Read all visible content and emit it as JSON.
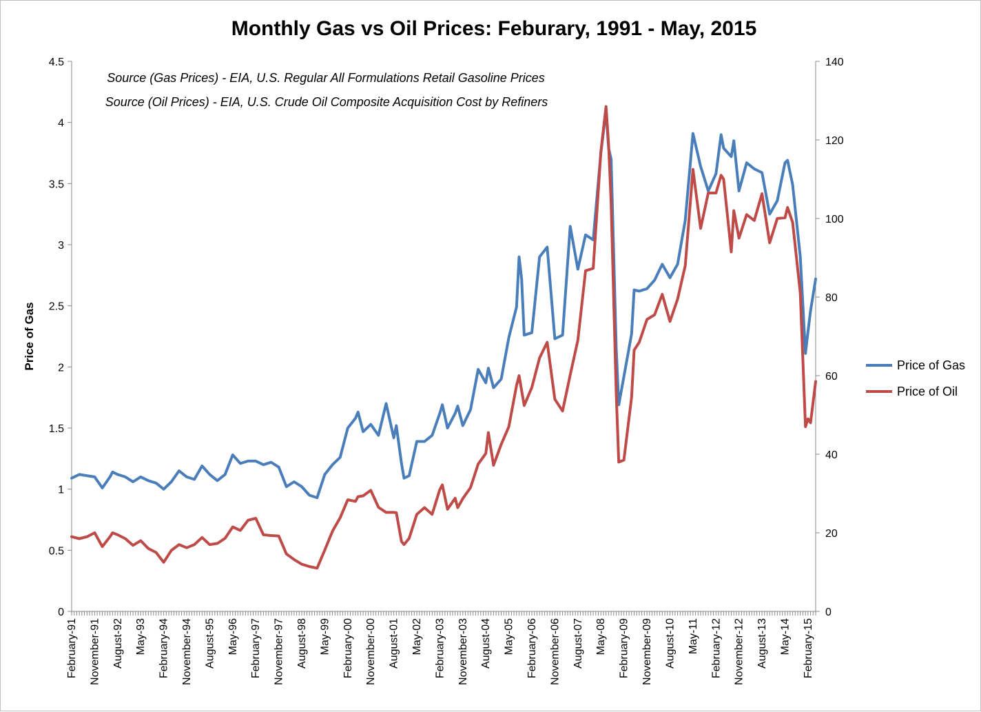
{
  "chart_data": {
    "type": "line",
    "title": "Monthly Gas vs Oil Prices: Feburary, 1991 - May, 2015",
    "ylabel": "Price of Gas",
    "y2label": "",
    "ylim": [
      0,
      4.5
    ],
    "y2lim": [
      0,
      140
    ],
    "y_ticks": [
      "0",
      "0.5",
      "1",
      "1.5",
      "2",
      "2.5",
      "3",
      "3.5",
      "4",
      "4.5"
    ],
    "y2_ticks": [
      "0",
      "20",
      "40",
      "60",
      "80",
      "100",
      "120",
      "140"
    ],
    "x_tick_labels": [
      "February-91",
      "November-91",
      "August-92",
      "May-93",
      "February-94",
      "November-94",
      "August-95",
      "May-96",
      "February-97",
      "November-97",
      "August-98",
      "May-99",
      "February-00",
      "November-00",
      "August-01",
      "May-02",
      "February-03",
      "November-03",
      "August-04",
      "May-05",
      "February-06",
      "November-06",
      "August-07",
      "May-08",
      "February-09",
      "November-09",
      "August-10",
      "May-11",
      "February-12",
      "November-12",
      "August-13",
      "May-14",
      "February-15"
    ],
    "annotations": [
      "Source (Gas Prices) - EIA, U.S. Regular All Formulations Retail Gasoline Prices",
      "Source (Oil Prices) - EIA, U.S. Crude Oil Composite Acquisition Cost by Refiners"
    ],
    "legend_position": "right",
    "grid": false,
    "x_start": "February-91",
    "x_end": "May-15",
    "series": [
      {
        "name": "Price of Gas",
        "axis": "left",
        "color": "#4a7ebb",
        "points": [
          [
            "February-91",
            1.09
          ],
          [
            "May-91",
            1.12
          ],
          [
            "August-91",
            1.11
          ],
          [
            "November-91",
            1.1
          ],
          [
            "February-92",
            1.01
          ],
          [
            "May-92",
            1.1
          ],
          [
            "June-92",
            1.14
          ],
          [
            "August-92",
            1.12
          ],
          [
            "November-92",
            1.1
          ],
          [
            "February-93",
            1.06
          ],
          [
            "May-93",
            1.1
          ],
          [
            "August-93",
            1.07
          ],
          [
            "November-93",
            1.05
          ],
          [
            "February-94",
            1.0
          ],
          [
            "May-94",
            1.06
          ],
          [
            "August-94",
            1.15
          ],
          [
            "November-94",
            1.1
          ],
          [
            "February-95",
            1.08
          ],
          [
            "May-95",
            1.19
          ],
          [
            "August-95",
            1.12
          ],
          [
            "November-95",
            1.07
          ],
          [
            "February-96",
            1.12
          ],
          [
            "May-96",
            1.28
          ],
          [
            "August-96",
            1.21
          ],
          [
            "November-96",
            1.23
          ],
          [
            "February-97",
            1.23
          ],
          [
            "May-97",
            1.2
          ],
          [
            "August-97",
            1.22
          ],
          [
            "November-97",
            1.18
          ],
          [
            "February-98",
            1.02
          ],
          [
            "May-98",
            1.06
          ],
          [
            "August-98",
            1.02
          ],
          [
            "November-98",
            0.95
          ],
          [
            "February-99",
            0.93
          ],
          [
            "May-99",
            1.12
          ],
          [
            "August-99",
            1.2
          ],
          [
            "November-99",
            1.26
          ],
          [
            "February-00",
            1.5
          ],
          [
            "May-00",
            1.58
          ],
          [
            "June-00",
            1.63
          ],
          [
            "August-00",
            1.47
          ],
          [
            "November-00",
            1.53
          ],
          [
            "February-01",
            1.44
          ],
          [
            "May-01",
            1.7
          ],
          [
            "August-01",
            1.42
          ],
          [
            "September-01",
            1.52
          ],
          [
            "November-01",
            1.21
          ],
          [
            "December-01",
            1.09
          ],
          [
            "February-02",
            1.11
          ],
          [
            "May-02",
            1.39
          ],
          [
            "August-02",
            1.39
          ],
          [
            "November-02",
            1.44
          ],
          [
            "February-03",
            1.62
          ],
          [
            "March-03",
            1.69
          ],
          [
            "May-03",
            1.5
          ],
          [
            "August-03",
            1.62
          ],
          [
            "September-03",
            1.68
          ],
          [
            "November-03",
            1.52
          ],
          [
            "February-04",
            1.65
          ],
          [
            "May-04",
            1.98
          ],
          [
            "August-04",
            1.87
          ],
          [
            "September-04",
            1.99
          ],
          [
            "November-04",
            1.83
          ],
          [
            "February-05",
            1.9
          ],
          [
            "May-05",
            2.24
          ],
          [
            "August-05",
            2.49
          ],
          [
            "September-05",
            2.9
          ],
          [
            "October-05",
            2.72
          ],
          [
            "November-05",
            2.26
          ],
          [
            "February-06",
            2.28
          ],
          [
            "May-06",
            2.9
          ],
          [
            "August-06",
            2.98
          ],
          [
            "November-06",
            2.23
          ],
          [
            "February-07",
            2.26
          ],
          [
            "May-07",
            3.15
          ],
          [
            "August-07",
            2.8
          ],
          [
            "November-07",
            3.08
          ],
          [
            "February-08",
            3.04
          ],
          [
            "May-08",
            3.75
          ],
          [
            "July-08",
            4.1
          ],
          [
            "August-08",
            3.79
          ],
          [
            "September-08",
            3.7
          ],
          [
            "November-08",
            2.15
          ],
          [
            "December-08",
            1.69
          ],
          [
            "February-09",
            1.92
          ],
          [
            "May-09",
            2.27
          ],
          [
            "June-09",
            2.63
          ],
          [
            "August-09",
            2.62
          ],
          [
            "November-09",
            2.64
          ],
          [
            "February-10",
            2.71
          ],
          [
            "May-10",
            2.84
          ],
          [
            "August-10",
            2.73
          ],
          [
            "November-10",
            2.84
          ],
          [
            "February-11",
            3.2
          ],
          [
            "May-11",
            3.91
          ],
          [
            "August-11",
            3.64
          ],
          [
            "November-11",
            3.44
          ],
          [
            "February-12",
            3.58
          ],
          [
            "April-12",
            3.9
          ],
          [
            "May-12",
            3.79
          ],
          [
            "August-12",
            3.72
          ],
          [
            "September-12",
            3.85
          ],
          [
            "November-12",
            3.44
          ],
          [
            "February-13",
            3.67
          ],
          [
            "May-13",
            3.62
          ],
          [
            "August-13",
            3.59
          ],
          [
            "November-13",
            3.25
          ],
          [
            "February-14",
            3.36
          ],
          [
            "May-14",
            3.67
          ],
          [
            "June-14",
            3.69
          ],
          [
            "August-14",
            3.49
          ],
          [
            "November-14",
            2.9
          ],
          [
            "January-15",
            2.11
          ],
          [
            "February-15",
            2.29
          ],
          [
            "March-15",
            2.46
          ],
          [
            "May-15",
            2.72
          ]
        ]
      },
      {
        "name": "Price of Oil",
        "axis": "right",
        "color": "#be4b48",
        "points": [
          [
            "February-91",
            19
          ],
          [
            "May-91",
            18.5
          ],
          [
            "August-91",
            19
          ],
          [
            "November-91",
            20
          ],
          [
            "February-92",
            16.5
          ],
          [
            "May-92",
            19
          ],
          [
            "June-92",
            20
          ],
          [
            "August-92",
            19.5
          ],
          [
            "November-92",
            18.5
          ],
          [
            "February-93",
            16.8
          ],
          [
            "May-93",
            18
          ],
          [
            "August-93",
            16
          ],
          [
            "November-93",
            15
          ],
          [
            "February-94",
            12.5
          ],
          [
            "May-94",
            15.5
          ],
          [
            "August-94",
            17
          ],
          [
            "November-94",
            16.2
          ],
          [
            "February-95",
            17
          ],
          [
            "May-95",
            18.8
          ],
          [
            "August-95",
            17
          ],
          [
            "November-95",
            17.3
          ],
          [
            "February-96",
            18.6
          ],
          [
            "May-96",
            21.5
          ],
          [
            "August-96",
            20.6
          ],
          [
            "November-96",
            23.2
          ],
          [
            "February-97",
            23.7
          ],
          [
            "May-97",
            19.5
          ],
          [
            "August-97",
            19.3
          ],
          [
            "November-97",
            19.2
          ],
          [
            "February-98",
            14.6
          ],
          [
            "May-98",
            13.2
          ],
          [
            "August-98",
            12
          ],
          [
            "November-98",
            11.4
          ],
          [
            "February-99",
            11
          ],
          [
            "May-99",
            15.6
          ],
          [
            "August-99",
            20.4
          ],
          [
            "November-99",
            23.8
          ],
          [
            "February-00",
            28.4
          ],
          [
            "May-00",
            28
          ],
          [
            "June-00",
            29.2
          ],
          [
            "August-00",
            29.4
          ],
          [
            "November-00",
            30.8
          ],
          [
            "February-01",
            26.5
          ],
          [
            "May-01",
            25.2
          ],
          [
            "August-01",
            25.2
          ],
          [
            "September-01",
            25.1
          ],
          [
            "November-01",
            17.8
          ],
          [
            "December-01",
            17
          ],
          [
            "February-02",
            18.6
          ],
          [
            "May-02",
            24.7
          ],
          [
            "August-02",
            26.4
          ],
          [
            "November-02",
            24.7
          ],
          [
            "February-03",
            31
          ],
          [
            "March-03",
            32.2
          ],
          [
            "May-03",
            26
          ],
          [
            "August-03",
            28.8
          ],
          [
            "September-03",
            26.4
          ],
          [
            "November-03",
            28.7
          ],
          [
            "February-04",
            31.5
          ],
          [
            "May-04",
            37.5
          ],
          [
            "August-04",
            40.2
          ],
          [
            "September-04",
            45.5
          ],
          [
            "November-04",
            37.2
          ],
          [
            "February-05",
            42.5
          ],
          [
            "May-05",
            47
          ],
          [
            "August-05",
            57.5
          ],
          [
            "September-05",
            60
          ],
          [
            "October-05",
            56.2
          ],
          [
            "November-05",
            52.4
          ],
          [
            "February-06",
            57
          ],
          [
            "May-06",
            64.5
          ],
          [
            "August-06",
            68.5
          ],
          [
            "November-06",
            54
          ],
          [
            "February-07",
            51
          ],
          [
            "May-07",
            60.2
          ],
          [
            "August-07",
            69
          ],
          [
            "November-07",
            86.7
          ],
          [
            "February-08",
            87.3
          ],
          [
            "May-08",
            117
          ],
          [
            "July-08",
            128.5
          ],
          [
            "August-08",
            119
          ],
          [
            "September-08",
            104
          ],
          [
            "November-08",
            55.5
          ],
          [
            "December-08",
            38
          ],
          [
            "February-09",
            38.5
          ],
          [
            "May-09",
            54.5
          ],
          [
            "June-09",
            66.5
          ],
          [
            "August-09",
            68.5
          ],
          [
            "November-09",
            74.3
          ],
          [
            "February-10",
            75.5
          ],
          [
            "May-10",
            80.7
          ],
          [
            "August-10",
            73.8
          ],
          [
            "November-10",
            79.5
          ],
          [
            "February-11",
            88
          ],
          [
            "May-11",
            112.5
          ],
          [
            "August-11",
            97.5
          ],
          [
            "November-11",
            106.5
          ],
          [
            "February-12",
            106.5
          ],
          [
            "April-12",
            111
          ],
          [
            "May-12",
            110
          ],
          [
            "August-12",
            91.5
          ],
          [
            "September-12",
            102
          ],
          [
            "November-12",
            95
          ],
          [
            "February-13",
            101
          ],
          [
            "May-13",
            99.5
          ],
          [
            "August-13",
            106.3
          ],
          [
            "November-13",
            93.8
          ],
          [
            "February-14",
            100
          ],
          [
            "May-14",
            100.2
          ],
          [
            "June-14",
            102.8
          ],
          [
            "August-14",
            99
          ],
          [
            "November-14",
            81
          ],
          [
            "January-15",
            47
          ],
          [
            "February-15",
            49
          ],
          [
            "March-15",
            48
          ],
          [
            "May-15",
            58.5
          ]
        ]
      }
    ]
  }
}
